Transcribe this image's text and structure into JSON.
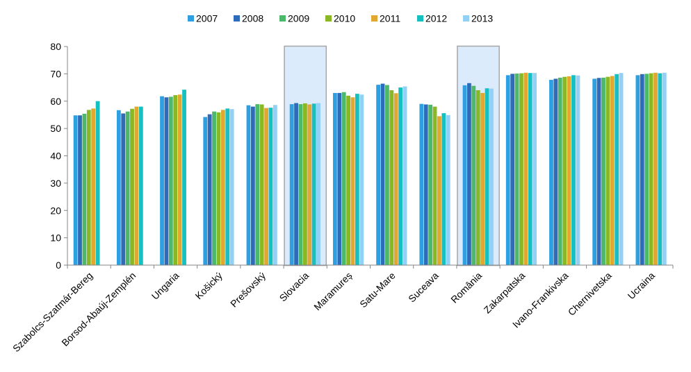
{
  "chart_data": {
    "type": "bar",
    "title": "",
    "xlabel": "",
    "ylabel": "",
    "ylim": [
      0,
      80
    ],
    "yticks": [
      0,
      10,
      20,
      30,
      40,
      50,
      60,
      70,
      80
    ],
    "grid": false,
    "legend_position": "top-center",
    "categories": [
      "Szabolcs-Szatmár-Bereg",
      "Borsod-Abaúj-Zemplén",
      "Ungaria",
      "Košický",
      "Prešovský",
      "Slovacia",
      "Maramureș",
      "Satu-Mare",
      "Suceava",
      "România",
      "Zakarpatska",
      "Ivano-Frankivska",
      "Chernivetska",
      "Ucraina"
    ],
    "highlighted_categories": [
      "Slovacia",
      "România"
    ],
    "series": [
      {
        "name": "2007",
        "color": "#2e9fe0",
        "values": [
          54.8,
          56.7,
          61.8,
          54.2,
          58.5,
          58.9,
          63.0,
          66.0,
          59.0,
          65.8,
          69.5,
          67.8,
          68.2,
          69.5
        ]
      },
      {
        "name": "2008",
        "color": "#2e6bb8",
        "values": [
          54.8,
          55.5,
          61.4,
          55.2,
          58.0,
          59.3,
          63.0,
          66.4,
          58.8,
          66.6,
          70.0,
          68.2,
          68.5,
          69.9
        ]
      },
      {
        "name": "2009",
        "color": "#4cb86b",
        "values": [
          55.4,
          56.2,
          61.6,
          56.2,
          58.9,
          58.9,
          63.3,
          65.9,
          58.7,
          65.6,
          70.1,
          68.6,
          68.6,
          70.0
        ]
      },
      {
        "name": "2010",
        "color": "#8ab825",
        "values": [
          56.8,
          57.2,
          62.2,
          55.9,
          58.8,
          59.2,
          62.0,
          64.0,
          58.0,
          64.0,
          70.2,
          68.9,
          68.9,
          70.2
        ]
      },
      {
        "name": "2011",
        "color": "#e0a830",
        "values": [
          57.3,
          58.0,
          62.4,
          56.8,
          57.5,
          58.8,
          61.4,
          62.9,
          54.5,
          63.0,
          70.4,
          69.1,
          69.2,
          70.4
        ]
      },
      {
        "name": "2012",
        "color": "#16c0c0",
        "values": [
          60.0,
          58.0,
          64.2,
          57.3,
          57.6,
          59.1,
          62.7,
          65.0,
          55.6,
          64.7,
          70.3,
          69.5,
          69.9,
          70.2
        ]
      },
      {
        "name": "2013",
        "color": "#92d0f5",
        "values": [
          null,
          null,
          null,
          57.1,
          58.6,
          59.3,
          62.4,
          65.4,
          54.9,
          64.6,
          70.3,
          69.4,
          70.3,
          70.4
        ]
      }
    ]
  }
}
